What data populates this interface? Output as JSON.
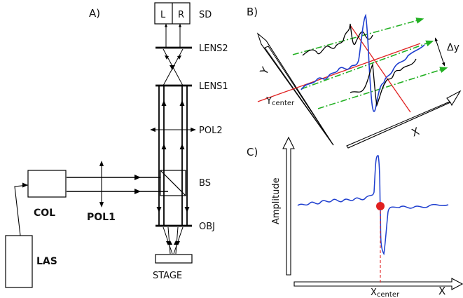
{
  "panel_a": {
    "title": "A)",
    "detector": {
      "left": "L",
      "right": "R",
      "label": "SD"
    },
    "lens2": "LENS2",
    "lens1": "LENS1",
    "pol2": "POL2",
    "bs": "BS",
    "obj": "OBJ",
    "stage": "STAGE",
    "col": "COL",
    "pol1": "POL1",
    "las": "LAS"
  },
  "panel_b": {
    "title": "B)",
    "y_axis": "Y",
    "x_axis": "X",
    "y_center": "Y",
    "y_center_sub": "center",
    "delta_y": "Δy"
  },
  "panel_c": {
    "title": "C)",
    "y_axis": "Amplitude",
    "x_axis": "X",
    "x_center": "X",
    "x_center_sub": "center"
  },
  "colors": {
    "beam": "#000000",
    "signal_blue": "#1f3fcf",
    "signal_black": "#000000",
    "scan_green": "#22b022",
    "center_red": "#e02020"
  }
}
